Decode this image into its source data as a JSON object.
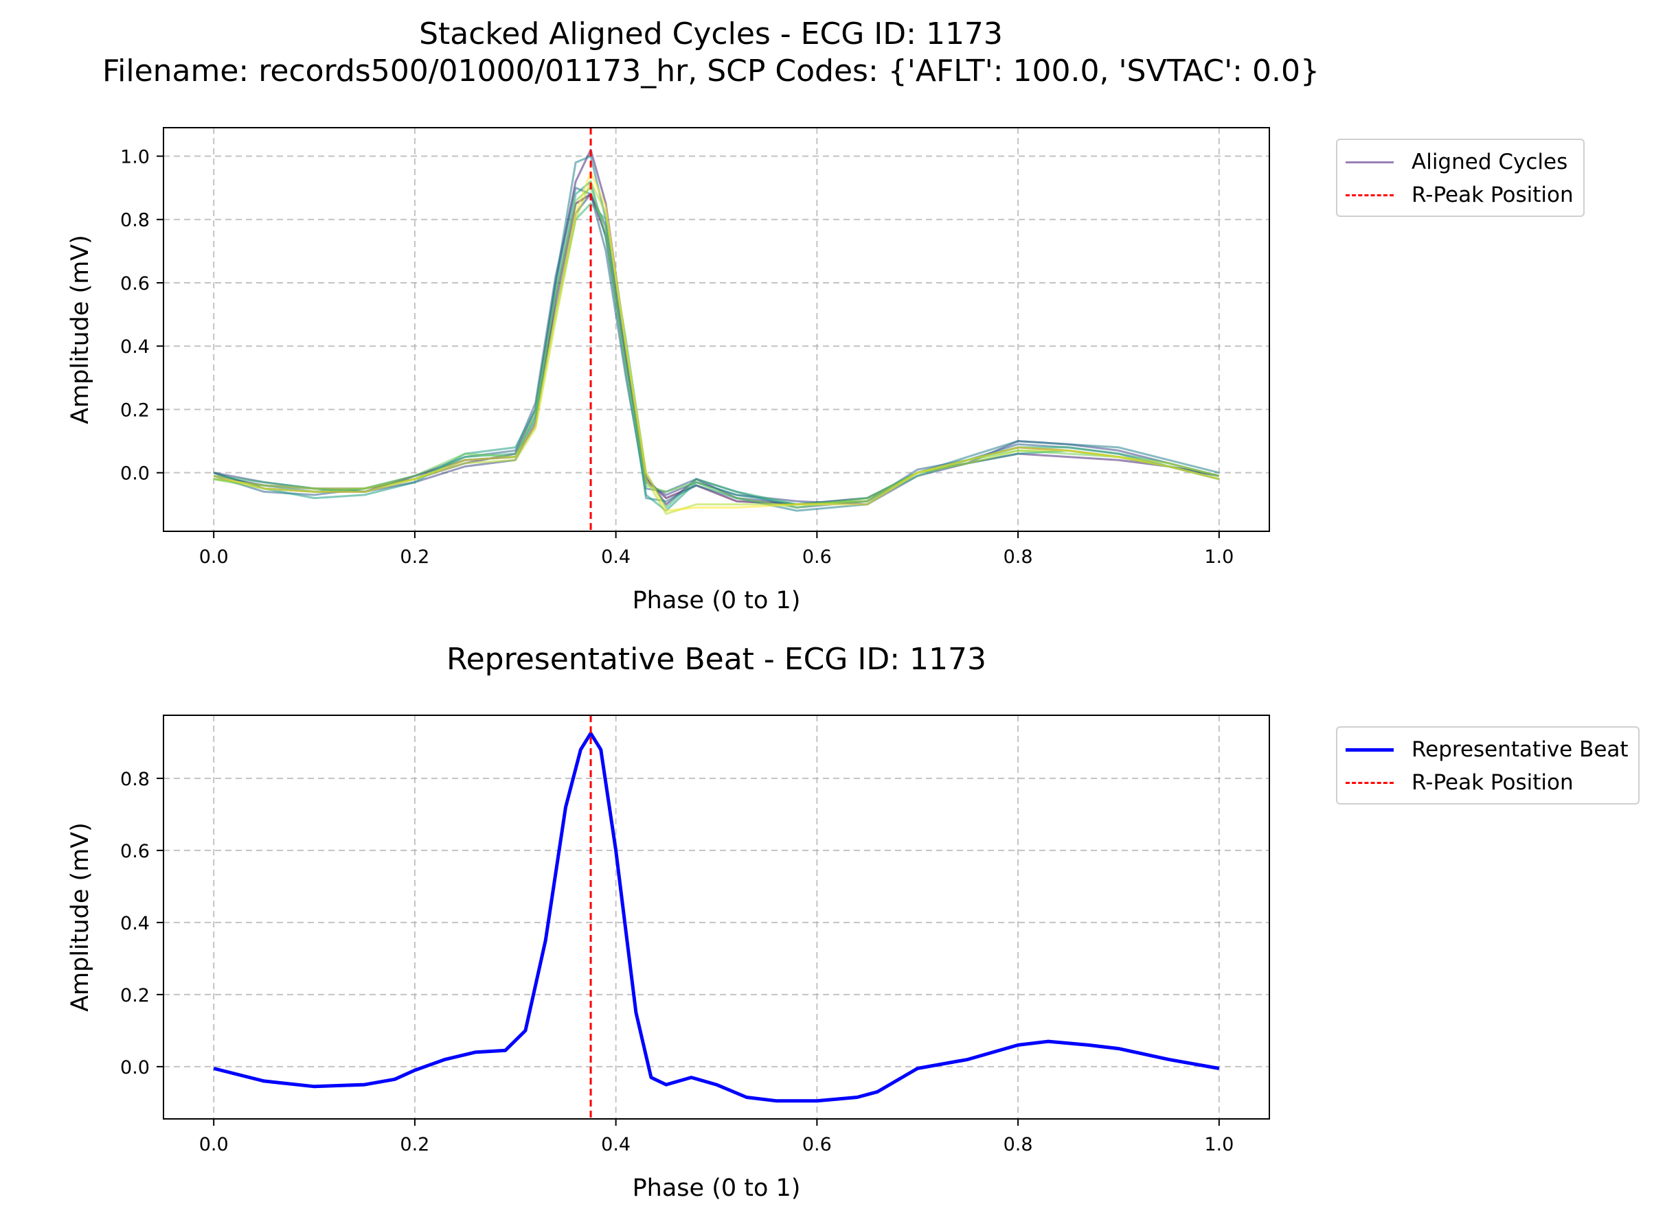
{
  "figure": {
    "title_line1": "Stacked Aligned Cycles - ECG ID: 1173",
    "title_line2": "Filename: records500/01000/01173_hr, SCP Codes: {'AFLT': 100.0, 'SVTAC': 0.0}"
  },
  "chart_data": [
    {
      "type": "line",
      "title": "Stacked Aligned Cycles - ECG ID: 1173",
      "xlabel": "Phase (0 to 1)",
      "ylabel": "Amplitude (mV)",
      "xlim": [
        -0.05,
        1.05
      ],
      "ylim": [
        -0.185,
        1.09
      ],
      "xticks": [
        "0.0",
        "0.2",
        "0.4",
        "0.6",
        "0.8",
        "1.0"
      ],
      "yticks": [
        "0.0",
        "0.2",
        "0.4",
        "0.6",
        "0.8",
        "1.0"
      ],
      "grid": true,
      "legend_placement": "outside upper right",
      "legend": [
        {
          "label": "Aligned Cycles",
          "color": "#9a7fb5",
          "style": "solid"
        },
        {
          "label": "R-Peak Position",
          "color": "#ff0000",
          "style": "dashed"
        }
      ],
      "r_peak_x": 0.375,
      "cycle_x": [
        0,
        0.05,
        0.1,
        0.15,
        0.2,
        0.25,
        0.3,
        0.32,
        0.34,
        0.36,
        0.375,
        0.39,
        0.41,
        0.43,
        0.45,
        0.48,
        0.52,
        0.58,
        0.65,
        0.7,
        0.75,
        0.8,
        0.85,
        0.9,
        0.95,
        1.0
      ],
      "series": [
        {
          "color": "#440154",
          "values": [
            0.0,
            -0.05,
            -0.06,
            -0.06,
            -0.01,
            0.04,
            0.05,
            0.15,
            0.55,
            0.85,
            0.88,
            0.75,
            0.35,
            -0.02,
            -0.08,
            -0.04,
            -0.09,
            -0.1,
            -0.08,
            0.0,
            0.04,
            0.08,
            0.07,
            0.05,
            0.02,
            -0.01
          ]
        },
        {
          "color": "#482878",
          "values": [
            -0.01,
            -0.04,
            -0.05,
            -0.05,
            -0.02,
            0.03,
            0.06,
            0.2,
            0.6,
            0.92,
            1.02,
            0.85,
            0.4,
            -0.01,
            -0.1,
            -0.02,
            -0.08,
            -0.1,
            -0.09,
            0.0,
            0.03,
            0.06,
            0.05,
            0.04,
            0.02,
            -0.02
          ]
        },
        {
          "color": "#3e4989",
          "values": [
            0.0,
            -0.03,
            -0.05,
            -0.06,
            -0.03,
            0.02,
            0.04,
            0.16,
            0.52,
            0.82,
            0.88,
            0.78,
            0.36,
            -0.03,
            -0.07,
            -0.03,
            -0.07,
            -0.09,
            -0.1,
            -0.01,
            0.03,
            0.1,
            0.09,
            0.07,
            0.03,
            -0.01
          ]
        },
        {
          "color": "#31688e",
          "values": [
            -0.01,
            -0.06,
            -0.07,
            -0.05,
            -0.01,
            0.05,
            0.07,
            0.22,
            0.62,
            0.9,
            0.88,
            0.7,
            0.3,
            -0.05,
            -0.06,
            -0.02,
            -0.06,
            -0.11,
            -0.09,
            0.01,
            0.04,
            0.09,
            0.08,
            0.06,
            0.02,
            -0.01
          ]
        },
        {
          "color": "#26828e",
          "values": [
            -0.02,
            -0.04,
            -0.06,
            -0.05,
            -0.02,
            0.04,
            0.05,
            0.18,
            0.6,
            0.98,
            1.0,
            0.8,
            0.38,
            -0.08,
            -0.09,
            -0.04,
            -0.08,
            -0.12,
            -0.1,
            0.0,
            0.05,
            0.1,
            0.09,
            0.08,
            0.04,
            0.0
          ]
        },
        {
          "color": "#1f9e89",
          "values": [
            0.0,
            -0.05,
            -0.08,
            -0.07,
            -0.03,
            0.06,
            0.08,
            0.2,
            0.58,
            0.88,
            0.92,
            0.74,
            0.32,
            -0.07,
            -0.12,
            -0.03,
            -0.07,
            -0.1,
            -0.08,
            0.0,
            0.03,
            0.06,
            0.07,
            0.05,
            0.02,
            -0.02
          ]
        },
        {
          "color": "#35b779",
          "values": [
            -0.01,
            -0.03,
            -0.05,
            -0.06,
            -0.02,
            0.05,
            0.06,
            0.17,
            0.5,
            0.8,
            0.85,
            0.8,
            0.42,
            0.0,
            -0.11,
            -0.02,
            -0.06,
            -0.1,
            -0.09,
            -0.01,
            0.04,
            0.08,
            0.08,
            0.06,
            0.03,
            -0.01
          ]
        },
        {
          "color": "#6ece58",
          "values": [
            -0.02,
            -0.05,
            -0.06,
            -0.05,
            -0.01,
            0.06,
            0.05,
            0.19,
            0.56,
            0.86,
            0.9,
            0.76,
            0.34,
            -0.04,
            -0.06,
            -0.03,
            -0.08,
            -0.11,
            -0.08,
            0.0,
            0.04,
            0.07,
            0.06,
            0.05,
            0.02,
            -0.02
          ]
        },
        {
          "color": "#b5de2b",
          "values": [
            -0.02,
            -0.04,
            -0.05,
            -0.05,
            -0.02,
            0.03,
            0.04,
            0.14,
            0.48,
            0.8,
            0.92,
            0.82,
            0.4,
            -0.02,
            -0.13,
            -0.1,
            -0.1,
            -0.1,
            -0.09,
            0.0,
            0.03,
            0.07,
            0.07,
            0.05,
            0.03,
            -0.01
          ]
        },
        {
          "color": "#fde725",
          "values": [
            -0.01,
            -0.05,
            -0.06,
            -0.06,
            -0.02,
            0.04,
            0.05,
            0.15,
            0.5,
            0.82,
            0.95,
            0.84,
            0.4,
            0.0,
            -0.12,
            -0.11,
            -0.11,
            -0.1,
            -0.1,
            0.0,
            0.04,
            0.08,
            0.07,
            0.05,
            0.02,
            -0.02
          ]
        }
      ]
    },
    {
      "type": "line",
      "title": "Representative Beat - ECG ID: 1173",
      "xlabel": "Phase (0 to 1)",
      "ylabel": "Amplitude (mV)",
      "xlim": [
        -0.05,
        1.05
      ],
      "ylim": [
        -0.145,
        0.975
      ],
      "xticks": [
        "0.0",
        "0.2",
        "0.4",
        "0.6",
        "0.8",
        "1.0"
      ],
      "yticks": [
        "0.0",
        "0.2",
        "0.4",
        "0.6",
        "0.8"
      ],
      "grid": true,
      "legend_placement": "outside upper right",
      "legend": [
        {
          "label": "Representative Beat",
          "color": "#0000ff",
          "style": "solid"
        },
        {
          "label": "R-Peak Position",
          "color": "#ff0000",
          "style": "dashed"
        }
      ],
      "r_peak_x": 0.375,
      "series": [
        {
          "name": "Representative Beat",
          "color": "#0000ff",
          "x": [
            0,
            0.05,
            0.1,
            0.15,
            0.18,
            0.2,
            0.23,
            0.26,
            0.29,
            0.31,
            0.33,
            0.35,
            0.365,
            0.375,
            0.385,
            0.4,
            0.42,
            0.435,
            0.45,
            0.475,
            0.5,
            0.53,
            0.56,
            0.6,
            0.64,
            0.66,
            0.7,
            0.75,
            0.8,
            0.83,
            0.87,
            0.9,
            0.95,
            1.0
          ],
          "values": [
            -0.005,
            -0.04,
            -0.055,
            -0.05,
            -0.035,
            -0.01,
            0.02,
            0.04,
            0.045,
            0.1,
            0.35,
            0.72,
            0.88,
            0.925,
            0.88,
            0.6,
            0.15,
            -0.03,
            -0.05,
            -0.03,
            -0.05,
            -0.085,
            -0.095,
            -0.095,
            -0.085,
            -0.07,
            -0.005,
            0.02,
            0.06,
            0.07,
            0.06,
            0.05,
            0.02,
            -0.005
          ]
        }
      ]
    }
  ]
}
